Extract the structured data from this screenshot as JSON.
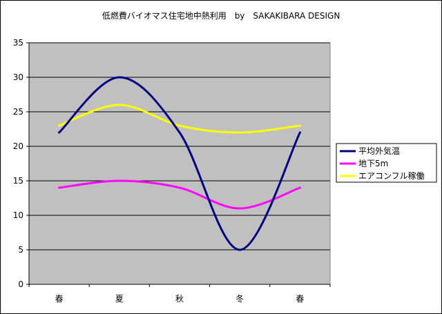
{
  "chart_data": {
    "type": "line",
    "title": "低燃費バイオマス住宅地中熱利用　by　SAKAKIBARA DESIGN",
    "categories": [
      "春",
      "夏",
      "秋",
      "冬",
      "春"
    ],
    "ylim": [
      0,
      35
    ],
    "yticks": [
      0,
      5,
      10,
      15,
      20,
      25,
      30,
      35
    ],
    "grid": true,
    "legend_position": "right",
    "plot_background": "#c0c0c0",
    "series": [
      {
        "name": "平均外気温",
        "values": [
          22,
          30,
          22,
          5,
          22
        ],
        "color": "#000080"
      },
      {
        "name": "地下5m",
        "values": [
          14,
          15,
          14,
          11,
          14
        ],
        "color": "#ff00ff"
      },
      {
        "name": "エアコンフル稼働",
        "values": [
          23,
          26,
          23,
          22,
          23
        ],
        "color": "#ffff00"
      }
    ]
  }
}
